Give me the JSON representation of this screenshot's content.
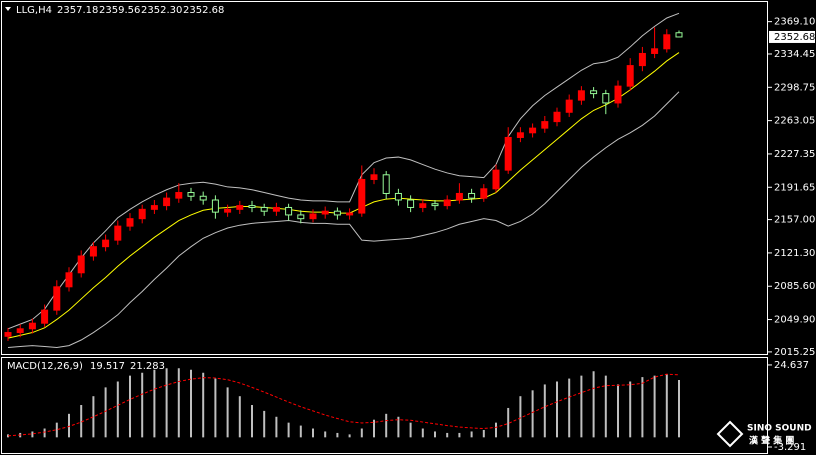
{
  "chart_data": [
    {
      "type": "candlestick",
      "title": "LLG,H4",
      "quote": [
        "2357.18",
        "2359.56",
        "2352.30",
        "2352.68"
      ],
      "open": [
        2032,
        2036,
        2040,
        2046,
        2060,
        2085,
        2100,
        2118,
        2128,
        2135,
        2150,
        2158,
        2168,
        2172,
        2180,
        2186,
        2182,
        2178,
        2165,
        2168,
        2172,
        2170,
        2166,
        2170,
        2162,
        2158,
        2163,
        2166,
        2162,
        2164,
        2200,
        2205,
        2185,
        2178,
        2170,
        2174,
        2172,
        2178,
        2185,
        2180,
        2190,
        2210,
        2245,
        2250,
        2255,
        2262,
        2272,
        2285,
        2295,
        2292,
        2282,
        2300,
        2322,
        2335,
        2340,
        2357.18
      ],
      "high": [
        2041,
        2045,
        2051,
        2066,
        2092,
        2106,
        2124,
        2133,
        2141,
        2156,
        2164,
        2173,
        2178,
        2186,
        2196,
        2191,
        2187,
        2183,
        2173,
        2177,
        2177,
        2174,
        2175,
        2174,
        2167,
        2168,
        2171,
        2170,
        2169,
        2215,
        2212,
        2209,
        2190,
        2183,
        2179,
        2178,
        2183,
        2196,
        2190,
        2195,
        2216,
        2256,
        2256,
        2260,
        2268,
        2277,
        2291,
        2300,
        2299,
        2296,
        2306,
        2330,
        2342,
        2363,
        2361,
        2359.56
      ],
      "low": [
        2027,
        2031,
        2035,
        2042,
        2055,
        2080,
        2095,
        2113,
        2123,
        2130,
        2145,
        2153,
        2163,
        2167,
        2175,
        2177,
        2173,
        2158,
        2160,
        2163,
        2165,
        2161,
        2161,
        2156,
        2153,
        2154,
        2158,
        2157,
        2157,
        2160,
        2195,
        2179,
        2172,
        2165,
        2165,
        2167,
        2168,
        2174,
        2175,
        2176,
        2186,
        2206,
        2240,
        2245,
        2250,
        2257,
        2267,
        2280,
        2287,
        2270,
        2277,
        2295,
        2316,
        2330,
        2336,
        2352.3
      ],
      "close": [
        2036,
        2040,
        2046,
        2060,
        2085,
        2100,
        2118,
        2128,
        2135,
        2150,
        2158,
        2168,
        2172,
        2180,
        2186,
        2182,
        2178,
        2165,
        2168,
        2172,
        2170,
        2166,
        2170,
        2162,
        2158,
        2163,
        2166,
        2162,
        2164,
        2200,
        2205,
        2185,
        2178,
        2170,
        2174,
        2172,
        2178,
        2185,
        2180,
        2190,
        2210,
        2245,
        2250,
        2255,
        2262,
        2272,
        2285,
        2295,
        2292,
        2282,
        2300,
        2322,
        2335,
        2340,
        2355,
        2352.68
      ],
      "up_color": "#ff0000",
      "down_color": "#98fb98",
      "lines": [
        {
          "color": "#c0c0c0",
          "values": [
            2040,
            2045,
            2050,
            2061,
            2080,
            2098,
            2116,
            2132,
            2145,
            2159,
            2168,
            2176,
            2183,
            2189,
            2194,
            2196,
            2197,
            2195,
            2192,
            2191,
            2189,
            2186,
            2183,
            2180,
            2178,
            2177,
            2177,
            2176,
            2176,
            2205,
            2218,
            2223,
            2224,
            2221,
            2216,
            2211,
            2207,
            2204,
            2203,
            2202,
            2216,
            2246,
            2265,
            2279,
            2290,
            2299,
            2308,
            2317,
            2324,
            2326,
            2331,
            2342,
            2354,
            2364,
            2373,
            2378
          ]
        },
        {
          "color": "#ffff00",
          "values": [
            2030,
            2033,
            2036,
            2041,
            2050,
            2060,
            2072,
            2084,
            2095,
            2107,
            2118,
            2128,
            2138,
            2147,
            2156,
            2162,
            2167,
            2169,
            2170,
            2171,
            2171,
            2170,
            2169,
            2168,
            2166,
            2165,
            2165,
            2164,
            2164,
            2170,
            2176,
            2179,
            2180,
            2179,
            2178,
            2177,
            2177,
            2178,
            2179,
            2180,
            2186,
            2198,
            2210,
            2221,
            2232,
            2243,
            2254,
            2265,
            2274,
            2280,
            2287,
            2296,
            2306,
            2316,
            2327,
            2336
          ]
        },
        {
          "color": "#c0c0c0",
          "values": [
            2020,
            2021,
            2022,
            2021,
            2020,
            2022,
            2028,
            2036,
            2045,
            2055,
            2068,
            2080,
            2093,
            2105,
            2118,
            2128,
            2137,
            2143,
            2148,
            2151,
            2153,
            2154,
            2155,
            2156,
            2154,
            2153,
            2153,
            2152,
            2152,
            2135,
            2134,
            2135,
            2136,
            2137,
            2140,
            2143,
            2147,
            2152,
            2155,
            2158,
            2156,
            2150,
            2155,
            2163,
            2174,
            2187,
            2200,
            2213,
            2224,
            2234,
            2243,
            2250,
            2258,
            2268,
            2281,
            2294
          ]
        }
      ],
      "ylim": [
        2013,
        2388
      ],
      "yticks": [
        {
          "value": 2369.1,
          "label": "2369.10"
        },
        {
          "value": 2334.45,
          "label": "2334.45"
        },
        {
          "value": 2298.75,
          "label": "2298.75"
        },
        {
          "value": 2263.05,
          "label": "2263.05"
        },
        {
          "value": 2227.35,
          "label": "2227.35"
        },
        {
          "value": 2191.65,
          "label": "2191.65"
        },
        {
          "value": 2157,
          "label": "2157.00"
        },
        {
          "value": 2121.3,
          "label": "2121.30"
        },
        {
          "value": 2085.6,
          "label": "2085.60"
        },
        {
          "value": 2049.9,
          "label": "2049.90"
        },
        {
          "value": 2015.25,
          "label": "2015.25"
        }
      ]
    },
    {
      "type": "macd",
      "title": "MACD(12,26,9)",
      "histogram": {
        "color": "#c0c0c0",
        "values": [
          1,
          1.5,
          2,
          3,
          5,
          8,
          11,
          14,
          17,
          19,
          21,
          22,
          23,
          23.5,
          23.5,
          23,
          22,
          20,
          17,
          14,
          11,
          9,
          7,
          5,
          4,
          3,
          2,
          1.5,
          1,
          3,
          6,
          8,
          7,
          5,
          3,
          2,
          1.5,
          1.5,
          2,
          2.5,
          5,
          10,
          14,
          16,
          18,
          19,
          20,
          21,
          22.5,
          21,
          18,
          19,
          20.5,
          21,
          21.5,
          19.517
        ]
      },
      "signal": {
        "color": "#ff0000",
        "values": [
          0.5,
          0.8,
          1.2,
          1.8,
          2.6,
          3.7,
          5.2,
          7,
          8.9,
          10.9,
          12.9,
          14.7,
          16.4,
          17.8,
          19,
          19.8,
          20.3,
          20.2,
          19.6,
          18.5,
          17,
          15.4,
          13.7,
          12,
          10.4,
          9,
          7.6,
          6.4,
          5.3,
          4.9,
          5.1,
          5.7,
          6,
          5.8,
          5.2,
          4.6,
          4,
          3.5,
          3.2,
          3,
          3.4,
          4.7,
          6.6,
          8.5,
          10.4,
          12.1,
          13.7,
          15.2,
          16.7,
          17.6,
          17.7,
          17.9,
          18.4,
          20.5,
          21.5,
          21.283
        ]
      },
      "ylim": [
        -5.33,
        27.0
      ],
      "yticks": [
        24.637,
        -3.291
      ]
    }
  ],
  "watermark": {
    "name": "SINO SOUND",
    "subtitle": "漢 聲 集 團"
  }
}
